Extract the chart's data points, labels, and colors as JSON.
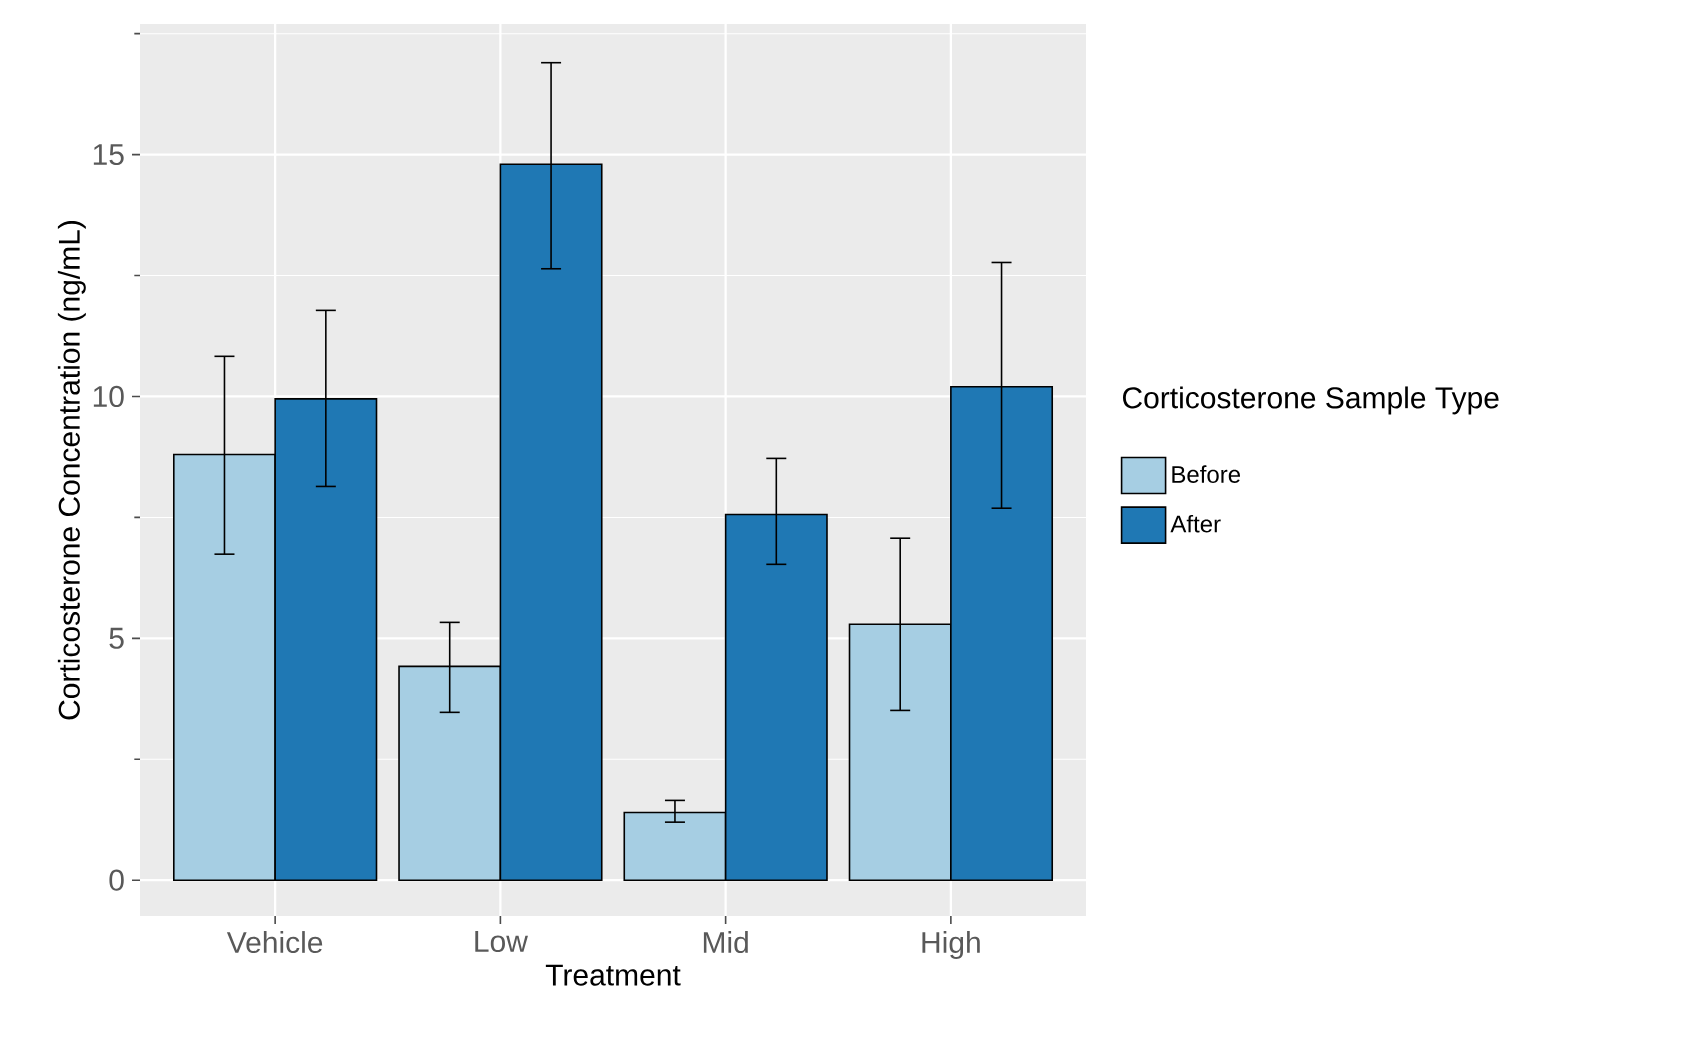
{
  "chart_data": {
    "type": "bar",
    "xlabel": "Treatment",
    "ylabel": "Corticosterone Concentration (ng/mL)",
    "legend_title": "Corticosterone Sample Type",
    "categories": [
      "Vehicle",
      "Low",
      "Mid",
      "High"
    ],
    "series": [
      {
        "name": "Before",
        "color": "#a6cee3",
        "values": [
          8.8,
          4.42,
          1.4,
          5.29
        ],
        "errors": [
          [
            6.74,
            10.83
          ],
          [
            3.47,
            5.33
          ],
          [
            1.2,
            1.65
          ],
          [
            3.51,
            7.07
          ]
        ]
      },
      {
        "name": "After",
        "color": "#1f78b4",
        "values": [
          9.95,
          14.8,
          7.56,
          10.2
        ],
        "errors": [
          [
            8.14,
            11.78
          ],
          [
            12.64,
            16.9
          ],
          [
            6.53,
            8.72
          ],
          [
            7.69,
            12.77
          ]
        ]
      }
    ],
    "ylim": [
      -0.74,
      17.7
    ],
    "yticks": [
      0,
      5,
      10,
      15
    ],
    "grid": true,
    "legend": "right"
  }
}
